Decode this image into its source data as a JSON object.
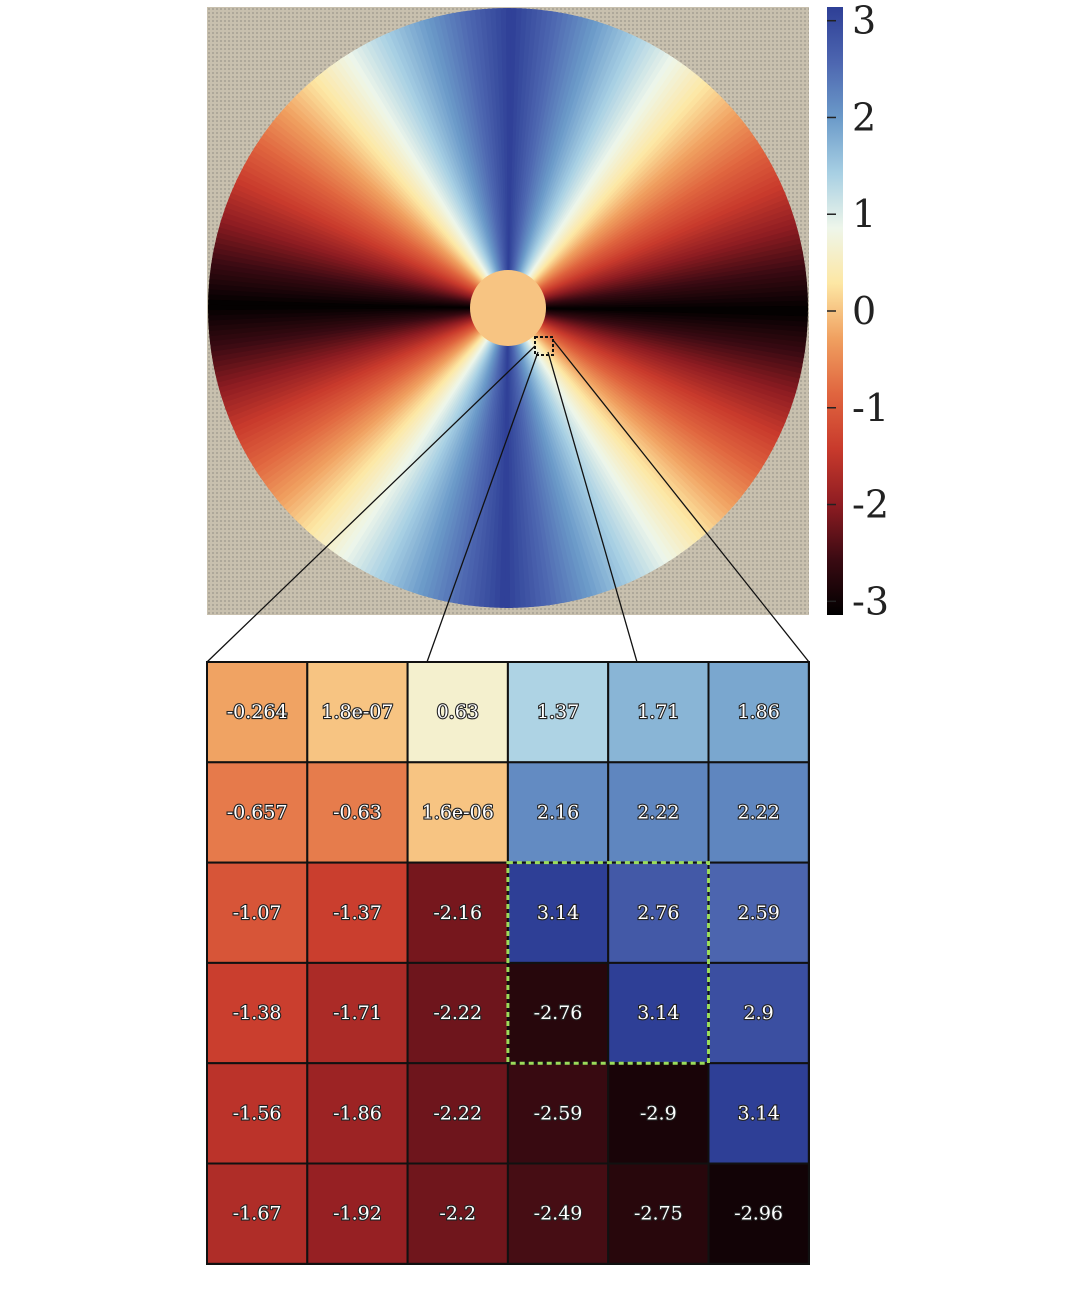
{
  "colors": {
    "colormap": [
      "#000000",
      "#3a0a12",
      "#8e1c22",
      "#c83a2c",
      "#e0653f",
      "#f0a060",
      "#fde7a4",
      "#eef6ea",
      "#a7cfe3",
      "#6b9ac9",
      "#4d66b0",
      "#2e3f96"
    ],
    "background_mask": "#bfb8a8",
    "highlight": "#9bdc5a",
    "cell_border": "#111111"
  },
  "chart_data": [
    {
      "type": "heatmap",
      "title": "",
      "description_kind": "phase map",
      "colorbar": {
        "min": -3.1416,
        "max": 3.1416,
        "ticks": [
          3,
          2,
          1,
          0,
          -1,
          -2,
          -3
        ]
      }
    },
    {
      "type": "heatmap",
      "title": "",
      "values": [
        [
          -0.264,
          1.8e-07,
          0.63,
          1.37,
          1.71,
          1.86
        ],
        [
          -0.657,
          -0.63,
          1.6e-06,
          2.16,
          2.22,
          2.22
        ],
        [
          -1.07,
          -1.37,
          -2.16,
          3.14,
          2.76,
          2.59
        ],
        [
          -1.38,
          -1.71,
          -2.22,
          -2.76,
          3.14,
          2.9
        ],
        [
          -1.56,
          -1.86,
          -2.22,
          -2.59,
          -2.9,
          3.14
        ],
        [
          -1.67,
          -1.92,
          -2.2,
          -2.49,
          -2.75,
          -2.96
        ]
      ],
      "labels": [
        [
          "-0.264",
          "1.8e-07",
          "0.63",
          "1.37",
          "1.71",
          "1.86"
        ],
        [
          "-0.657",
          "-0.63",
          "1.6e-06",
          "2.16",
          "2.22",
          "2.22"
        ],
        [
          "-1.07",
          "-1.37",
          "-2.16",
          "3.14",
          "2.76",
          "2.59"
        ],
        [
          "-1.38",
          "-1.71",
          "-2.22",
          "-2.76",
          "3.14",
          "2.9"
        ],
        [
          "-1.56",
          "-1.86",
          "-2.22",
          "-2.59",
          "-2.9",
          "3.14"
        ],
        [
          "-1.67",
          "-1.92",
          "-2.2",
          "-2.49",
          "-2.75",
          "-2.96"
        ]
      ],
      "highlight_region": {
        "rows": [
          2,
          3
        ],
        "cols": [
          3,
          4
        ]
      }
    }
  ]
}
